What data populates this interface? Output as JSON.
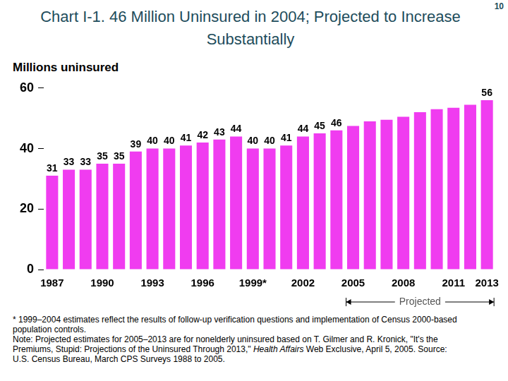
{
  "chart_data": {
    "type": "bar",
    "title": "Chart I-1. 46 Million Uninsured in 2004; Projected to Increase Substantially",
    "page_number": 10,
    "y_label": "Millions uninsured",
    "categories": [
      "1987",
      null,
      null,
      "1990",
      null,
      null,
      "1993",
      null,
      null,
      "1996",
      null,
      null,
      "1999*",
      null,
      null,
      "2002",
      null,
      null,
      "2005",
      null,
      null,
      "2008",
      null,
      null,
      "2011",
      null,
      "2013"
    ],
    "values": [
      31,
      33,
      33,
      35,
      35,
      39,
      40,
      40,
      41,
      42,
      43,
      44,
      40,
      40,
      41,
      44,
      45,
      46,
      47.5,
      49,
      49.5,
      50.5,
      52,
      53,
      53.5,
      54.5,
      56
    ],
    "value_labels": [
      "31",
      "33",
      "33",
      "35",
      "35",
      "39",
      "40",
      "40",
      "41",
      "42",
      "43",
      "44",
      "40",
      "40",
      "41",
      "44",
      "45",
      "46",
      null,
      null,
      null,
      null,
      null,
      null,
      null,
      null,
      "56"
    ],
    "color": "#f03cf0",
    "ylim": [
      0,
      60
    ],
    "yticks": [
      0,
      20,
      40,
      60
    ],
    "grid": false,
    "data_labels": true,
    "annotations": [
      {
        "text": "Projected",
        "from": "2005",
        "to": "2013"
      }
    ],
    "footnote": "* 1999–2004 estimates reflect the results of follow-up verification questions and implementation of Census 2000-based population controls.",
    "note": {
      "before": "Note: Projected estimates for 2005–2013 are for nonelderly uninsured based on T. Gilmer and R. Kronick, \"It's the Premiums, Stupid: Projections of the Uninsured Through 2013,\" ",
      "italic": "Health Affairs",
      "after": " Web Exclusive, April 5, 2005. Source: U.S. Census Bureau, March CPS Surveys 1988 to 2005."
    }
  }
}
